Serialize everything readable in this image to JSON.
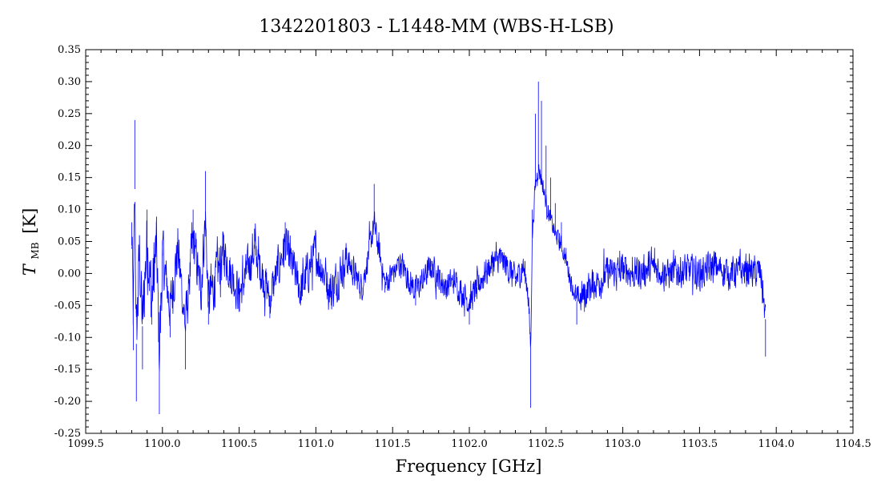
{
  "chart_data": {
    "type": "line",
    "title": "1342201803 - L1448-MM (WBS-H-LSB)",
    "xlabel": "Frequency [GHz]",
    "ylabel_main": "T",
    "ylabel_sub": "MB",
    "ylabel_unit": "[K]",
    "xlim": [
      1099.5,
      1104.5
    ],
    "ylim": [
      -0.25,
      0.35
    ],
    "x_ticks": [
      1099.5,
      1100.0,
      1100.5,
      1101.0,
      1101.5,
      1102.0,
      1102.5,
      1103.0,
      1103.5,
      1104.0,
      1104.5
    ],
    "x_tick_labels": [
      "1099.5",
      "1100.0",
      "1100.5",
      "1101.0",
      "1101.5",
      "1102.0",
      "1102.5",
      "1103.0",
      "1103.5",
      "1104.0",
      "1104.5"
    ],
    "y_ticks": [
      -0.25,
      -0.2,
      -0.15,
      -0.1,
      -0.05,
      0.0,
      0.05,
      0.1,
      0.15,
      0.2,
      0.25,
      0.3,
      0.35
    ],
    "y_tick_labels": [
      "-0.25",
      "-0.20",
      "-0.15",
      "-0.10",
      "-0.05",
      "0.00",
      "0.05",
      "0.10",
      "0.15",
      "0.20",
      "0.25",
      "0.30",
      "0.35"
    ],
    "grid": false,
    "series": [
      {
        "color": "#0000ff",
        "x_start": 1099.8,
        "x_end": 1103.93,
        "points": [
          [
            1099.8,
            0.08
          ],
          [
            1099.81,
            -0.12
          ],
          [
            1099.82,
            0.24
          ],
          [
            1099.83,
            -0.2
          ],
          [
            1099.85,
            0.06
          ],
          [
            1099.87,
            -0.15
          ],
          [
            1099.9,
            0.1
          ],
          [
            1099.93,
            -0.08
          ],
          [
            1099.96,
            0.08
          ],
          [
            1099.98,
            -0.22
          ],
          [
            1100.0,
            0.05
          ],
          [
            1100.05,
            -0.1
          ],
          [
            1100.1,
            0.07
          ],
          [
            1100.15,
            -0.15
          ],
          [
            1100.2,
            0.1
          ],
          [
            1100.25,
            -0.05
          ],
          [
            1100.28,
            0.16
          ],
          [
            1100.3,
            -0.08
          ],
          [
            1100.4,
            0.06
          ],
          [
            1100.5,
            -0.06
          ],
          [
            1100.6,
            0.07
          ],
          [
            1100.7,
            -0.07
          ],
          [
            1100.8,
            0.08
          ],
          [
            1100.9,
            -0.05
          ],
          [
            1101.0,
            0.06
          ],
          [
            1101.1,
            -0.05
          ],
          [
            1101.2,
            0.04
          ],
          [
            1101.3,
            -0.04
          ],
          [
            1101.38,
            0.14
          ],
          [
            1101.45,
            -0.03
          ],
          [
            1101.55,
            0.03
          ],
          [
            1101.65,
            -0.05
          ],
          [
            1101.75,
            0.02
          ],
          [
            1101.85,
            -0.04
          ],
          [
            1101.9,
            -0.02
          ],
          [
            1101.95,
            -0.05
          ],
          [
            1102.0,
            -0.08
          ],
          [
            1102.05,
            -0.04
          ],
          [
            1102.1,
            0.0
          ],
          [
            1102.15,
            0.03
          ],
          [
            1102.2,
            0.04
          ],
          [
            1102.25,
            0.02
          ],
          [
            1102.3,
            -0.02
          ],
          [
            1102.35,
            0.02
          ],
          [
            1102.38,
            -0.04
          ],
          [
            1102.4,
            -0.21
          ],
          [
            1102.41,
            0.1
          ],
          [
            1102.43,
            0.25
          ],
          [
            1102.45,
            0.3
          ],
          [
            1102.47,
            0.27
          ],
          [
            1102.5,
            0.2
          ],
          [
            1102.53,
            0.15
          ],
          [
            1102.56,
            0.11
          ],
          [
            1102.6,
            0.08
          ],
          [
            1102.63,
            0.04
          ],
          [
            1102.66,
            -0.02
          ],
          [
            1102.7,
            -0.08
          ],
          [
            1102.75,
            -0.06
          ],
          [
            1102.8,
            -0.03
          ],
          [
            1102.85,
            -0.02
          ],
          [
            1102.9,
            0.0
          ],
          [
            1103.0,
            0.01
          ],
          [
            1103.1,
            0.0
          ],
          [
            1103.2,
            0.02
          ],
          [
            1103.3,
            0.0
          ],
          [
            1103.4,
            0.01
          ],
          [
            1103.5,
            0.0
          ],
          [
            1103.6,
            0.02
          ],
          [
            1103.7,
            0.0
          ],
          [
            1103.8,
            0.01
          ],
          [
            1103.9,
            0.0
          ],
          [
            1103.93,
            -0.13
          ]
        ]
      }
    ]
  }
}
